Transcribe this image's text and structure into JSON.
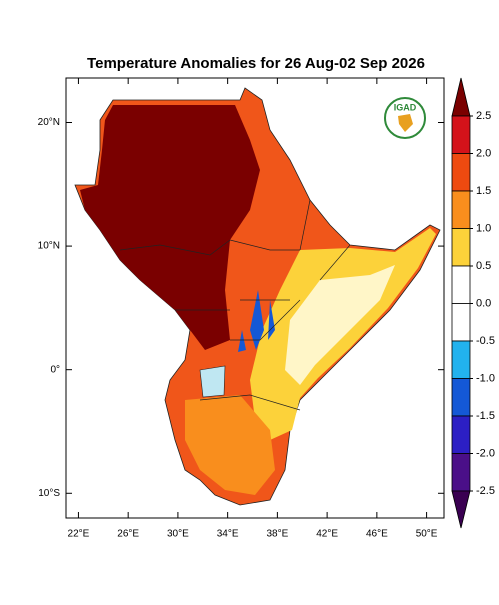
{
  "map": {
    "title": "Temperature Anomalies for 26 Aug-02 Sep 2026",
    "logo": "IGAD",
    "lonlim": [
      21,
      51.4
    ],
    "latlim": [
      -12,
      23.6
    ],
    "lonticks": [
      {
        "value": 22,
        "label": "22°E"
      },
      {
        "value": 26,
        "label": "26°E"
      },
      {
        "value": 30,
        "label": "30°E"
      },
      {
        "value": 34,
        "label": "34°E"
      },
      {
        "value": 38,
        "label": "38°E"
      },
      {
        "value": 42,
        "label": "42°E"
      },
      {
        "value": 46,
        "label": "46°E"
      },
      {
        "value": 50,
        "label": "50°E"
      }
    ],
    "latticks": [
      {
        "value": 20,
        "label": "20°N"
      },
      {
        "value": 10,
        "label": "10°N"
      },
      {
        "value": 0,
        "label": "0°"
      },
      {
        "value": -10,
        "label": "10°S"
      }
    ],
    "colorbar": {
      "levels": [
        2.5,
        {
          "value": 2,
          "label": "2.0"
        },
        1.5,
        {
          "value": 1,
          "label": "1.0"
        },
        0.5,
        {
          "value": 0,
          "label": "0.0"
        },
        -0.5,
        {
          "value": -1,
          "label": "-1.0"
        },
        -1.5,
        {
          "value": -2,
          "label": "-2.0"
        },
        -2.5
      ],
      "colors": [
        "#7a0000",
        "#d4121a",
        "#ee4a10",
        "#f98e1d",
        "#fcd23a",
        "#ffffff",
        "#ffffff",
        "#22b2ee",
        "#1458d6",
        "#2c1fc4",
        "#4a0f88",
        "#3a0052"
      ]
    }
  }
}
